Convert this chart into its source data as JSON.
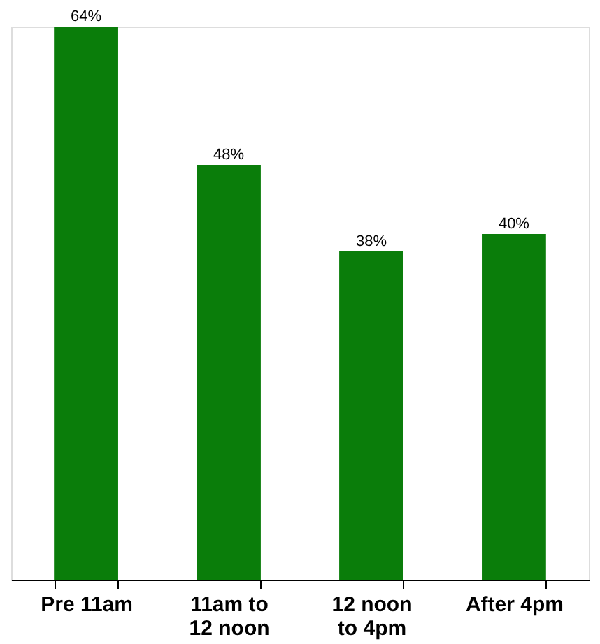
{
  "chart_data": {
    "type": "bar",
    "categories": [
      "Pre 11am",
      "11am to 12 noon",
      "12 noon to 4pm",
      "After 4pm"
    ],
    "values": [
      64,
      48,
      38,
      40
    ],
    "value_labels": [
      "64%",
      "48%",
      "38%",
      "40%"
    ],
    "color": "#0a7d0a",
    "grid": false
  }
}
